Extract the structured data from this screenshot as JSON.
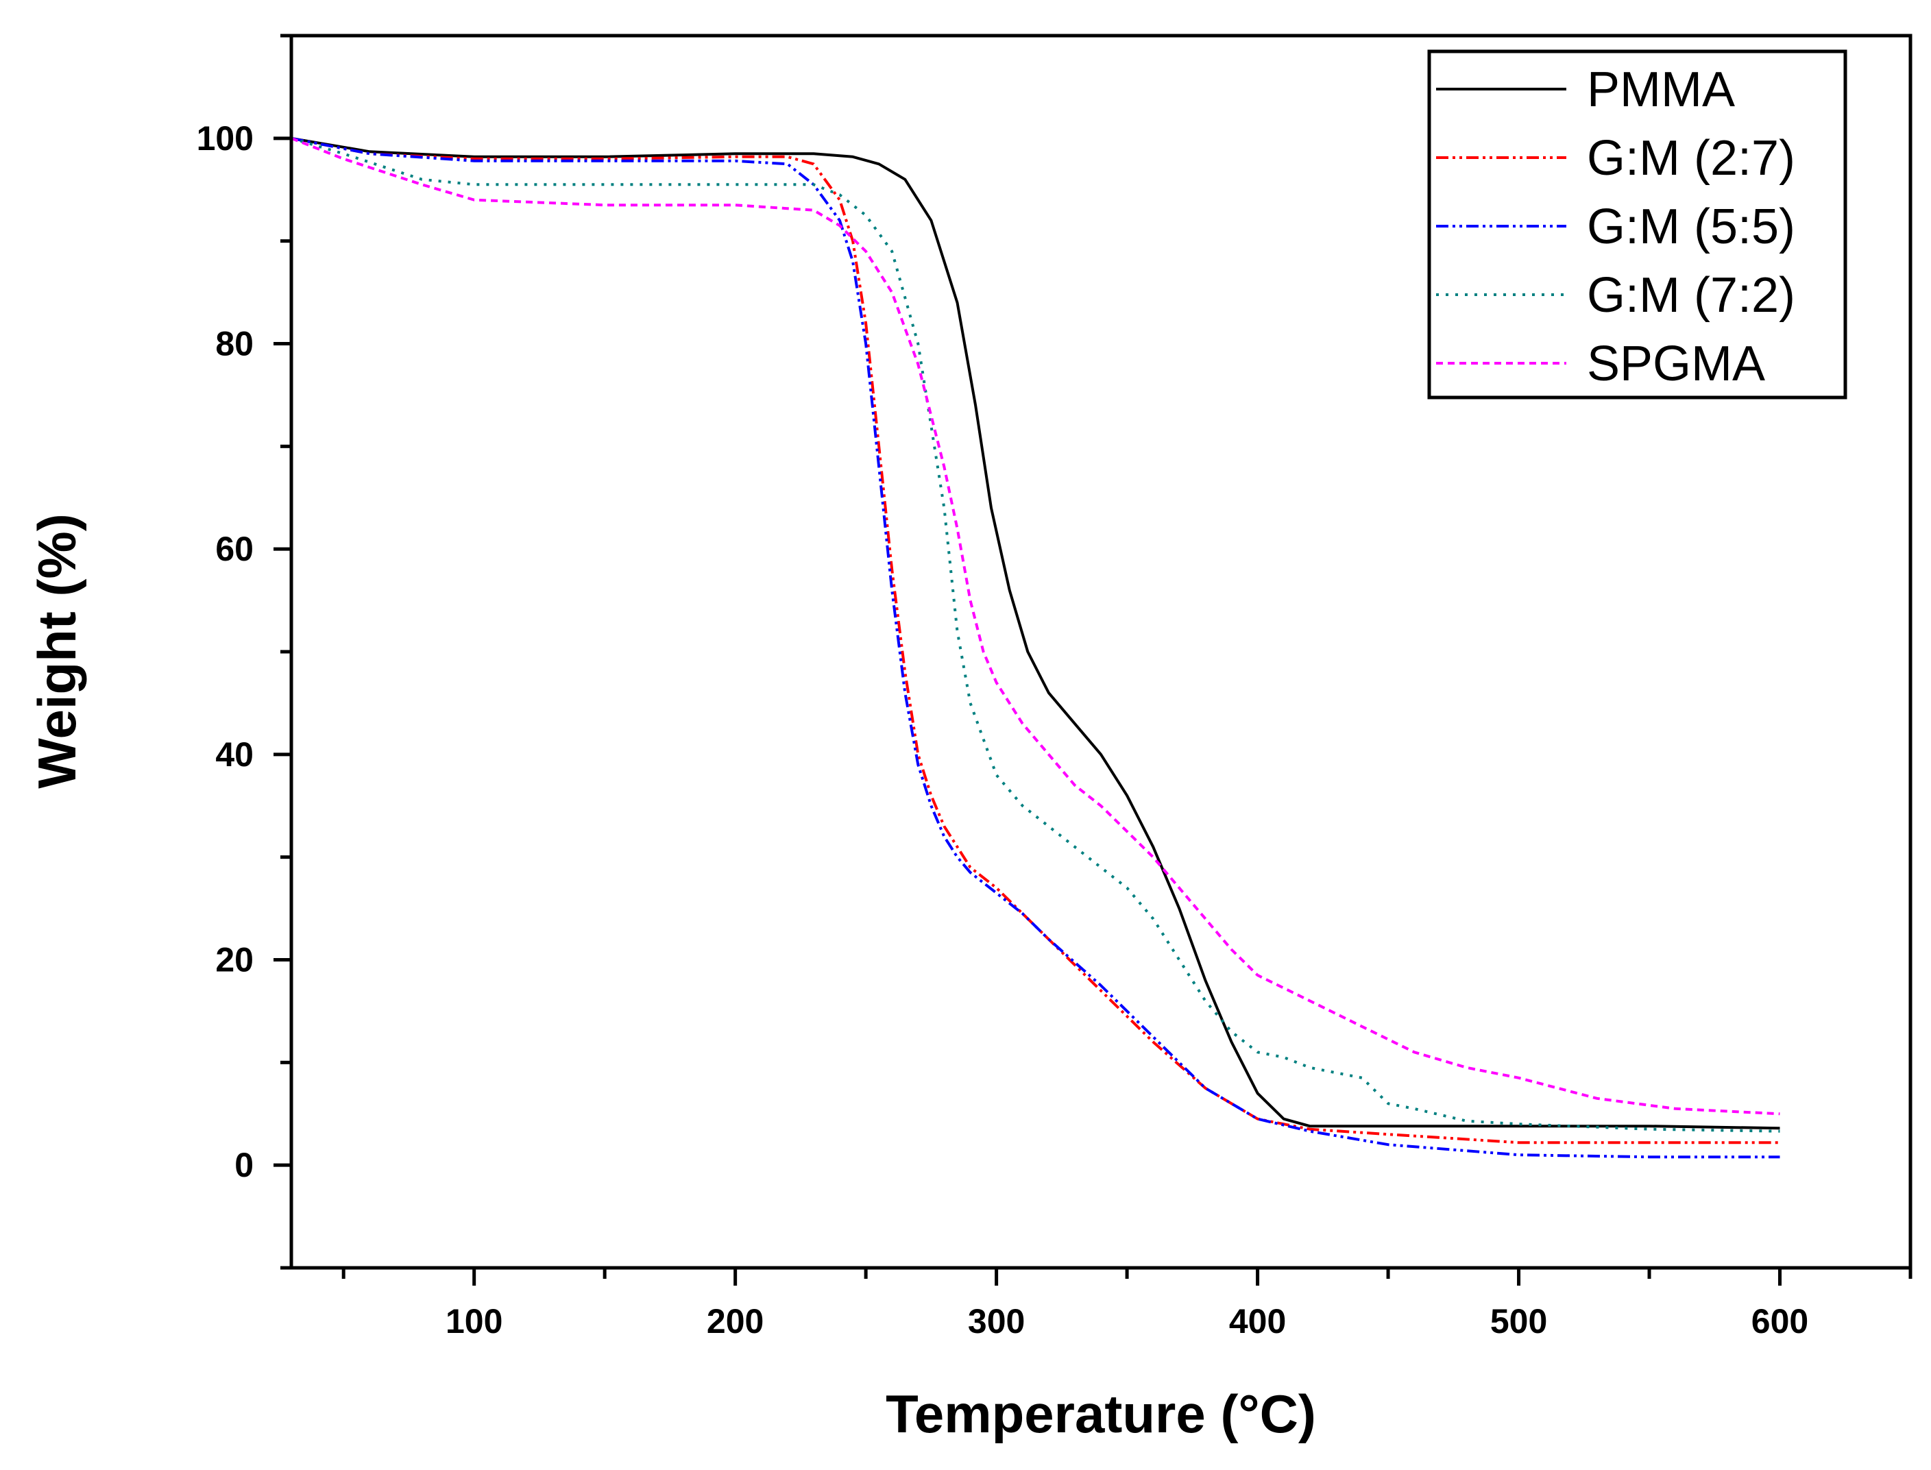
{
  "chart_data": {
    "type": "line",
    "title": "",
    "xlabel": "Temperature (°C)",
    "ylabel": "Weight (%)",
    "xlim": [
      30,
      650
    ],
    "ylim": [
      -10,
      110
    ],
    "xticks": [
      100,
      200,
      300,
      400,
      500,
      600
    ],
    "yticks": [
      0,
      20,
      40,
      60,
      80,
      100
    ],
    "legend_position": "top-right",
    "series": [
      {
        "name": "PMMA",
        "color": "#000000",
        "style": "solid",
        "x": [
          30,
          60,
          100,
          150,
          200,
          230,
          245,
          255,
          265,
          275,
          285,
          292,
          298,
          305,
          312,
          320,
          330,
          340,
          350,
          360,
          370,
          380,
          390,
          400,
          410,
          420,
          430,
          450,
          500,
          550,
          600
        ],
        "y": [
          100,
          98.7,
          98.2,
          98.2,
          98.5,
          98.5,
          98.2,
          97.5,
          96,
          92,
          84,
          74,
          64,
          56,
          50,
          46,
          43,
          40,
          36,
          31,
          25,
          18,
          12,
          7,
          4.5,
          3.8,
          3.8,
          3.8,
          3.8,
          3.8,
          3.6
        ]
      },
      {
        "name": "G:M (2:7)",
        "color": "#ff0000",
        "style": "dash-dot-dot",
        "x": [
          30,
          60,
          100,
          150,
          200,
          220,
          230,
          240,
          245,
          250,
          255,
          260,
          265,
          270,
          275,
          280,
          285,
          290,
          300,
          310,
          320,
          340,
          360,
          380,
          400,
          420,
          450,
          500,
          550,
          600
        ],
        "y": [
          100,
          98.5,
          98,
          98,
          98.2,
          98.2,
          97.5,
          94,
          90,
          82,
          70,
          58,
          48,
          40,
          36,
          33,
          31,
          29,
          27,
          24.5,
          22,
          17,
          12,
          7.5,
          4.5,
          3.5,
          3,
          2.2,
          2.2,
          2.2
        ]
      },
      {
        "name": "G:M (5:5)",
        "color": "#0000ff",
        "style": "dash-dot-dot",
        "x": [
          30,
          60,
          100,
          150,
          200,
          220,
          230,
          240,
          245,
          250,
          255,
          260,
          265,
          270,
          275,
          280,
          285,
          290,
          300,
          310,
          320,
          340,
          360,
          380,
          400,
          420,
          450,
          500,
          550,
          600
        ],
        "y": [
          100,
          98.5,
          97.8,
          97.8,
          97.8,
          97.5,
          95.5,
          92,
          88,
          80,
          68,
          56,
          46,
          39,
          35,
          32,
          30,
          28.5,
          26.5,
          24.5,
          22,
          17.5,
          12.5,
          7.5,
          4.5,
          3.3,
          2,
          1,
          0.8,
          0.8
        ]
      },
      {
        "name": "G:M (7:2)",
        "color": "#008080",
        "style": "dotted",
        "x": [
          30,
          50,
          80,
          100,
          150,
          200,
          230,
          240,
          250,
          260,
          270,
          280,
          285,
          290,
          300,
          310,
          320,
          330,
          340,
          350,
          360,
          370,
          380,
          390,
          400,
          410,
          420,
          440,
          450,
          460,
          480,
          500,
          550,
          600
        ],
        "y": [
          100,
          98.5,
          96,
          95.5,
          95.5,
          95.5,
          95.5,
          94.5,
          92.5,
          89,
          80,
          64,
          52,
          45,
          38,
          35,
          33,
          31,
          29,
          27,
          24,
          20,
          16,
          13,
          11,
          10.5,
          9.5,
          8.5,
          6,
          5.5,
          4.3,
          4,
          3.5,
          3.3
        ]
      },
      {
        "name": "SPGMA",
        "color": "#ff00ff",
        "style": "dashed",
        "x": [
          30,
          50,
          80,
          100,
          150,
          200,
          230,
          240,
          250,
          260,
          270,
          280,
          285,
          290,
          295,
          300,
          310,
          320,
          330,
          340,
          350,
          360,
          370,
          380,
          390,
          400,
          420,
          440,
          460,
          480,
          500,
          530,
          560,
          600
        ],
        "y": [
          100,
          98,
          95.5,
          94,
          93.5,
          93.5,
          93,
          91.5,
          89,
          85,
          78,
          68,
          62,
          55,
          50,
          47,
          43,
          40,
          37,
          35,
          32.5,
          30,
          27,
          24,
          21,
          18.5,
          16,
          13.5,
          11,
          9.5,
          8.5,
          6.5,
          5.5,
          5
        ]
      }
    ]
  }
}
